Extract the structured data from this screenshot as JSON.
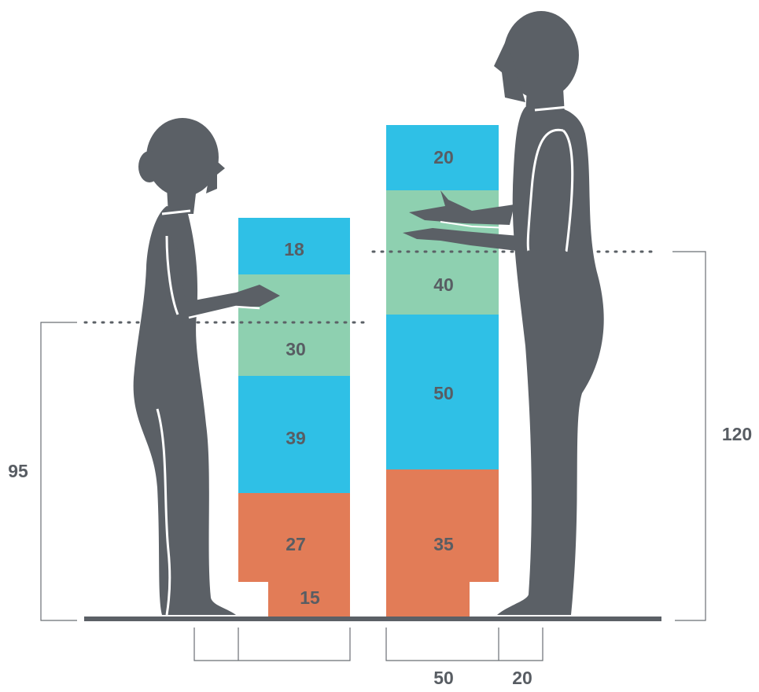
{
  "colors": {
    "figure": "#5b6066",
    "blue": "#2fc0e6",
    "green": "#8ed0b0",
    "orange": "#e27c57",
    "label": "#585d63",
    "dim_line": "#6b6f74"
  },
  "left_stack": {
    "segments": [
      "18",
      "30",
      "39",
      "27",
      "15"
    ]
  },
  "right_stack": {
    "segments": [
      "20",
      "40",
      "50",
      "35"
    ]
  },
  "dimensions": {
    "left_height": "95",
    "right_height": "120",
    "width_main": "50",
    "width_side": "20"
  },
  "figures": {
    "left": "woman-silhouette",
    "right": "man-silhouette"
  }
}
